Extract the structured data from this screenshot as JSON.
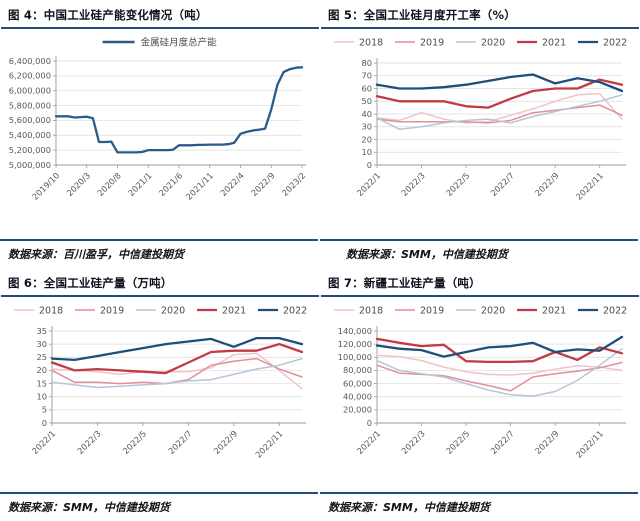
{
  "chart_data": [
    {
      "type": "line",
      "title": "图 4：中国工业硅产能变化情况（吨）",
      "source": "数据来源：百川盈孚，中信建投期货",
      "ylim": [
        5000000,
        6400000
      ],
      "ystep": 200000,
      "comma_format": true,
      "grid": true,
      "legend_position": "top-center",
      "x_ticklabels": [
        "2019/10",
        "2020/3",
        "2020/8",
        "2021/1",
        "2021/6",
        "2021/11",
        "2022/4",
        "2022/9",
        "2023/2"
      ],
      "x_tick_idx": [
        0,
        5,
        10,
        15,
        20,
        25,
        30,
        35,
        40
      ],
      "series": [
        {
          "name": "金属硅月度总产能",
          "color": "#2c5b8a",
          "width": 2.3,
          "values": [
            5655000,
            5655000,
            5655000,
            5640000,
            5645000,
            5650000,
            5630000,
            5310000,
            5310000,
            5315000,
            5170000,
            5170000,
            5170000,
            5170000,
            5175000,
            5200000,
            5200000,
            5200000,
            5200000,
            5205000,
            5265000,
            5265000,
            5265000,
            5270000,
            5270000,
            5275000,
            5275000,
            5275000,
            5280000,
            5300000,
            5420000,
            5445000,
            5465000,
            5475000,
            5490000,
            5750000,
            6080000,
            6250000,
            6290000,
            6310000,
            6315000
          ]
        }
      ]
    },
    {
      "type": "line",
      "title": "图 5：全国工业硅月度开工率（%）",
      "source": "数据来源：SMM，中信建投期货",
      "ylim": [
        0,
        80
      ],
      "ystep": 10,
      "comma_format": false,
      "grid": true,
      "legend_position": "top-center",
      "x_ticklabels": [
        "2022/1",
        "2022/3",
        "2022/5",
        "2022/7",
        "2022/9",
        "2022/11"
      ],
      "x_tick_idx": [
        0,
        2,
        4,
        6,
        8,
        10
      ],
      "series": [
        {
          "name": "2018",
          "color": "#efc4c8",
          "width": 1.5,
          "values": [
            37,
            35,
            41,
            36,
            33,
            34,
            39,
            44,
            50,
            55,
            56,
            36
          ]
        },
        {
          "name": "2019",
          "color": "#e28f98",
          "width": 1.5,
          "values": [
            36,
            34,
            34,
            34,
            34,
            33,
            35,
            41,
            43,
            45,
            47,
            39
          ]
        },
        {
          "name": "2020",
          "color": "#b4c7d9",
          "width": 1.5,
          "values": [
            37,
            28,
            30,
            33,
            35,
            36,
            33,
            38,
            42,
            46,
            50,
            55
          ]
        },
        {
          "name": "2021",
          "color": "#c13b45",
          "width": 2.3,
          "values": [
            54,
            50,
            50,
            50,
            46,
            45,
            52,
            58,
            60,
            60,
            67,
            63
          ]
        },
        {
          "name": "2022",
          "color": "#1f4e79",
          "width": 2.3,
          "values": [
            63,
            60,
            60,
            61,
            63,
            66,
            69,
            71,
            64,
            68,
            65,
            58
          ]
        }
      ]
    },
    {
      "type": "line",
      "title": "图 6：全国工业硅产量（万吨）",
      "source": "数据来源：SMM，中信建投期货",
      "ylim": [
        0,
        35
      ],
      "ystep": 5,
      "comma_format": false,
      "grid": true,
      "legend_position": "top-center",
      "x_ticklabels": [
        "2022/1",
        "2022/3",
        "2022/5",
        "2022/7",
        "2022/9",
        "2022/11"
      ],
      "x_tick_idx": [
        0,
        2,
        4,
        6,
        8,
        10
      ],
      "series": [
        {
          "name": "2018",
          "color": "#efc4c8",
          "width": 1.5,
          "values": [
            20.5,
            20,
            19.5,
            18.5,
            19.5,
            19.5,
            19.5,
            21,
            26,
            26.5,
            20,
            13
          ]
        },
        {
          "name": "2019",
          "color": "#e28f98",
          "width": 1.5,
          "values": [
            20,
            15.5,
            15.5,
            15,
            15.5,
            15,
            16.5,
            22,
            23.5,
            24.5,
            20.5,
            17.5
          ]
        },
        {
          "name": "2020",
          "color": "#b4c7d9",
          "width": 1.5,
          "values": [
            15.5,
            14.5,
            13.5,
            14,
            14.5,
            15,
            16,
            16.5,
            18.5,
            20.5,
            22,
            24.5
          ]
        },
        {
          "name": "2021",
          "color": "#c13b45",
          "width": 2.3,
          "values": [
            23,
            20,
            20.5,
            20,
            19.5,
            19,
            23,
            27,
            27.5,
            27.5,
            30,
            27
          ]
        },
        {
          "name": "2022",
          "color": "#1f4e79",
          "width": 2.3,
          "values": [
            24.5,
            24,
            25.5,
            27,
            28.5,
            30,
            31,
            32,
            29,
            32.3,
            32.3,
            30
          ]
        }
      ]
    },
    {
      "type": "line",
      "title": "图 7：新疆工业硅产量（吨）",
      "source": "数据来源：SMM，中信建投期货",
      "ylim": [
        0,
        140000
      ],
      "ystep": 20000,
      "comma_format": true,
      "grid": true,
      "legend_position": "top-center",
      "x_ticklabels": [
        "2022/1",
        "2022/3",
        "2022/5",
        "2022/7",
        "2022/9",
        "2022/11"
      ],
      "x_tick_idx": [
        0,
        2,
        4,
        6,
        8,
        10
      ],
      "series": [
        {
          "name": "2018",
          "color": "#efc4c8",
          "width": 1.5,
          "values": [
            103000,
            101000,
            95000,
            85000,
            78000,
            74000,
            73000,
            76000,
            82000,
            87000,
            85000,
            80000
          ]
        },
        {
          "name": "2019",
          "color": "#e28f98",
          "width": 1.5,
          "values": [
            88000,
            76000,
            74000,
            72000,
            64000,
            57000,
            49000,
            70000,
            75000,
            79000,
            84000,
            92000
          ]
        },
        {
          "name": "2020",
          "color": "#b4c7d9",
          "width": 1.5,
          "values": [
            95000,
            80000,
            75000,
            70000,
            60000,
            50000,
            43000,
            41000,
            48000,
            65000,
            88000,
            113000
          ]
        },
        {
          "name": "2021",
          "color": "#c13b45",
          "width": 2.3,
          "values": [
            128000,
            122000,
            117000,
            119000,
            94000,
            93000,
            93000,
            94000,
            108000,
            96000,
            115000,
            106000
          ]
        },
        {
          "name": "2022",
          "color": "#1f4e79",
          "width": 2.3,
          "values": [
            118000,
            113000,
            111000,
            101000,
            108000,
            115000,
            117000,
            122000,
            108000,
            112000,
            110000,
            131000
          ]
        }
      ]
    }
  ]
}
